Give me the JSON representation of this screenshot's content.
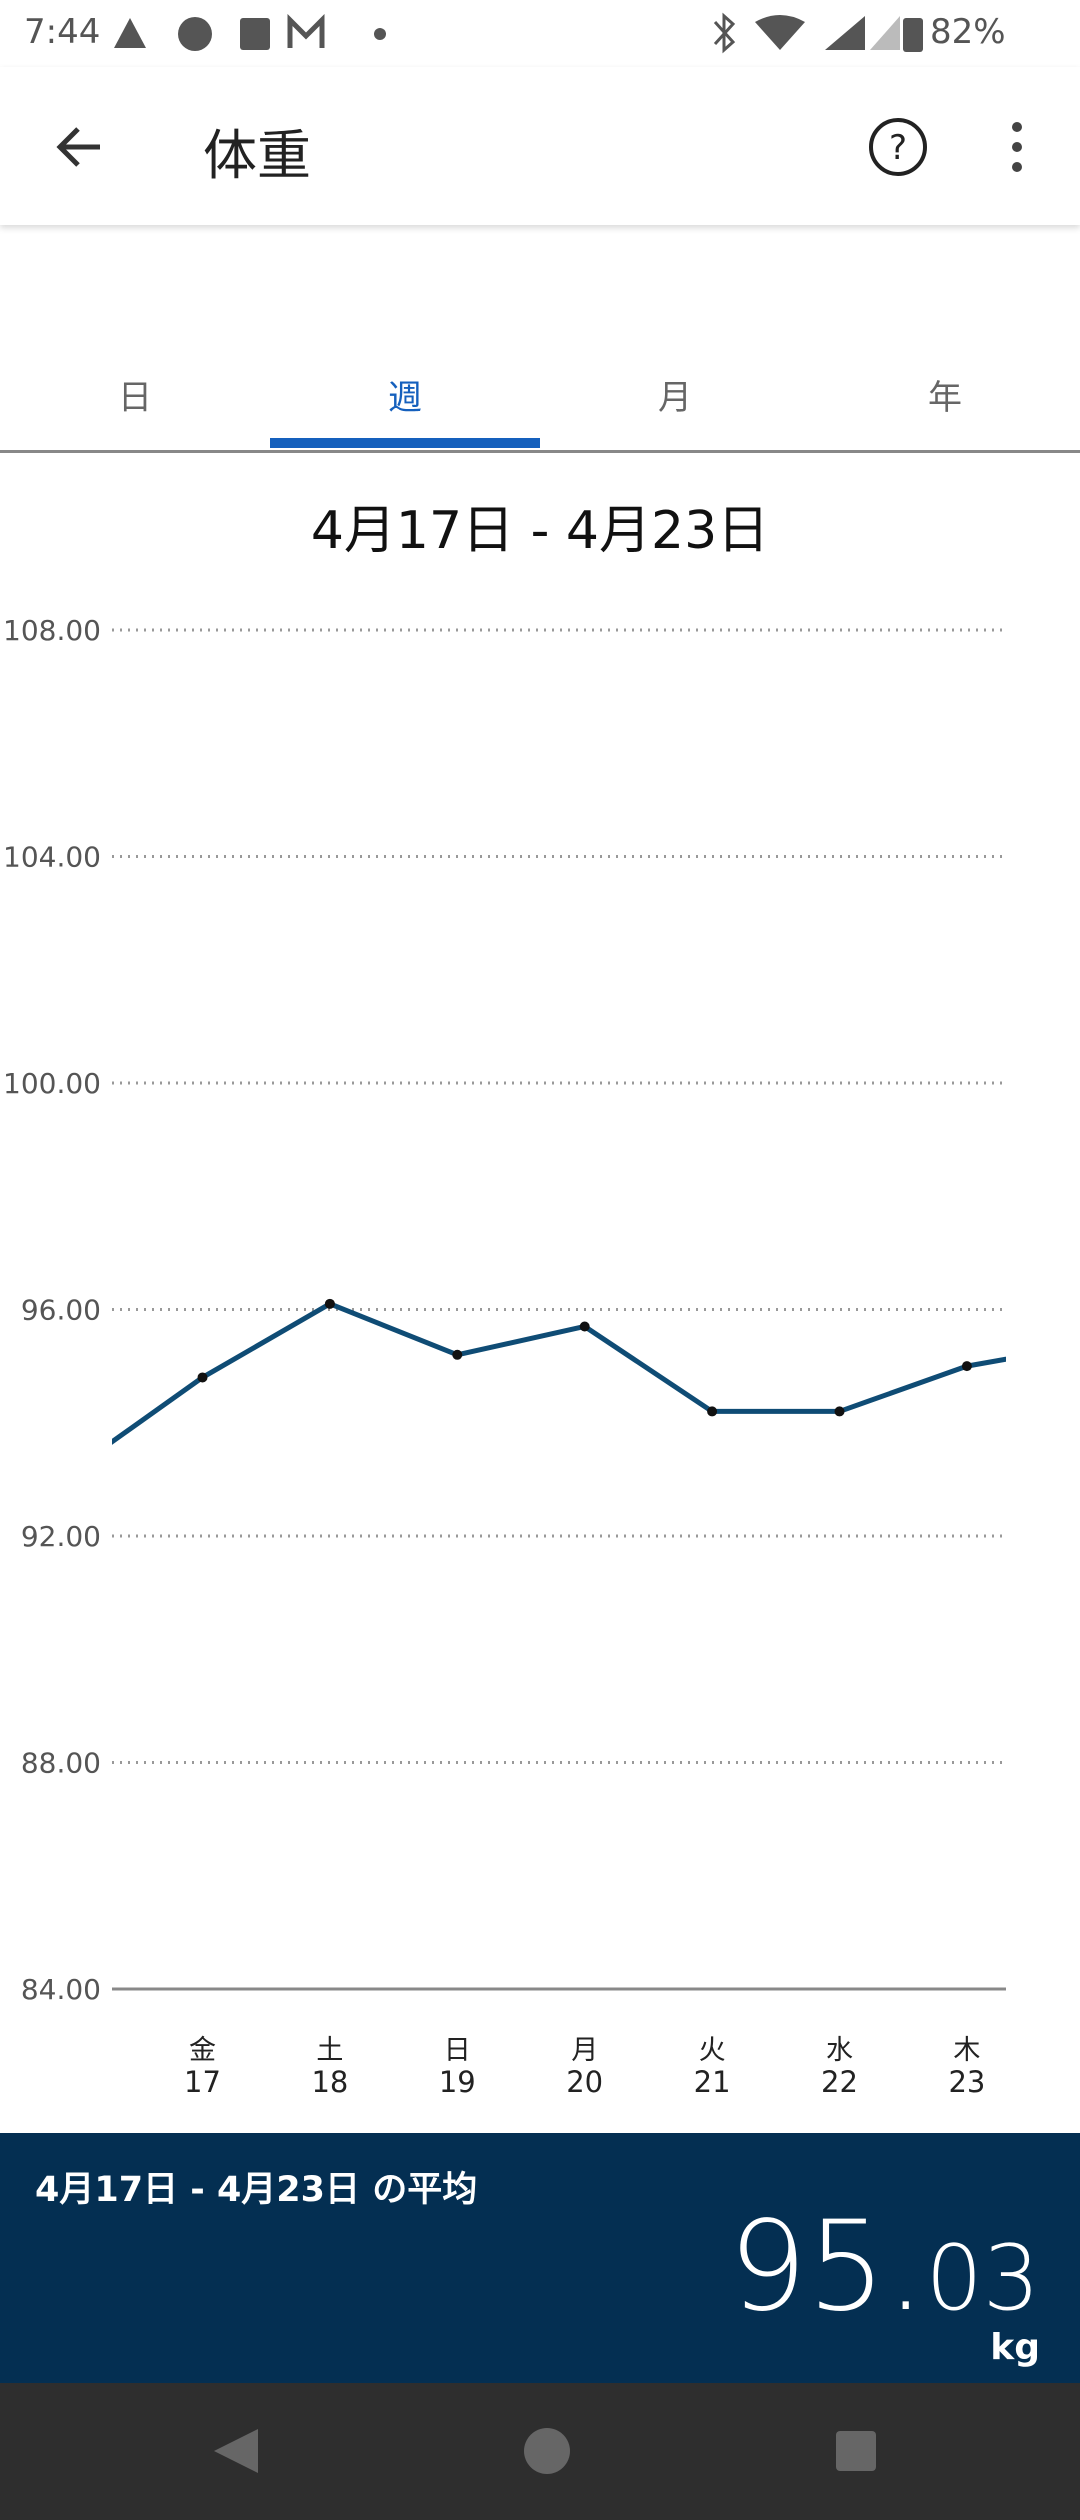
{
  "status_bar": {
    "time": "7:44",
    "battery": "82%"
  },
  "app_bar": {
    "title": "体重"
  },
  "tabs": {
    "items": [
      "日",
      "週",
      "月",
      "年"
    ],
    "selected": 1
  },
  "chart_data": {
    "type": "line",
    "title": "4月17日 - 4月23日",
    "categories": [
      null,
      "金",
      "土",
      "日",
      "月",
      "火",
      "水",
      "木",
      null
    ],
    "days": [
      null,
      "17",
      "18",
      "19",
      "20",
      "21",
      "22",
      "23",
      null
    ],
    "values": [
      93.2,
      94.8,
      96.1,
      95.2,
      95.7,
      94.2,
      94.2,
      95.0,
      95.4
    ],
    "color": "#0f4c75",
    "ylim": [
      84,
      108
    ],
    "yticks": [
      {
        "value": 84,
        "label": "84.00"
      },
      {
        "value": 88,
        "label": "88.00"
      },
      {
        "value": 92,
        "label": "92.00"
      },
      {
        "value": 96,
        "label": "96.00"
      },
      {
        "value": 100,
        "label": "100.00"
      },
      {
        "value": 104,
        "label": "104.00"
      },
      {
        "value": 108,
        "label": "108.00"
      }
    ],
    "grid": true
  },
  "summary": {
    "label": "4月17日 - 4月23日 の平均",
    "value_int": "95.",
    "value_frac": "03",
    "unit": "kg"
  }
}
